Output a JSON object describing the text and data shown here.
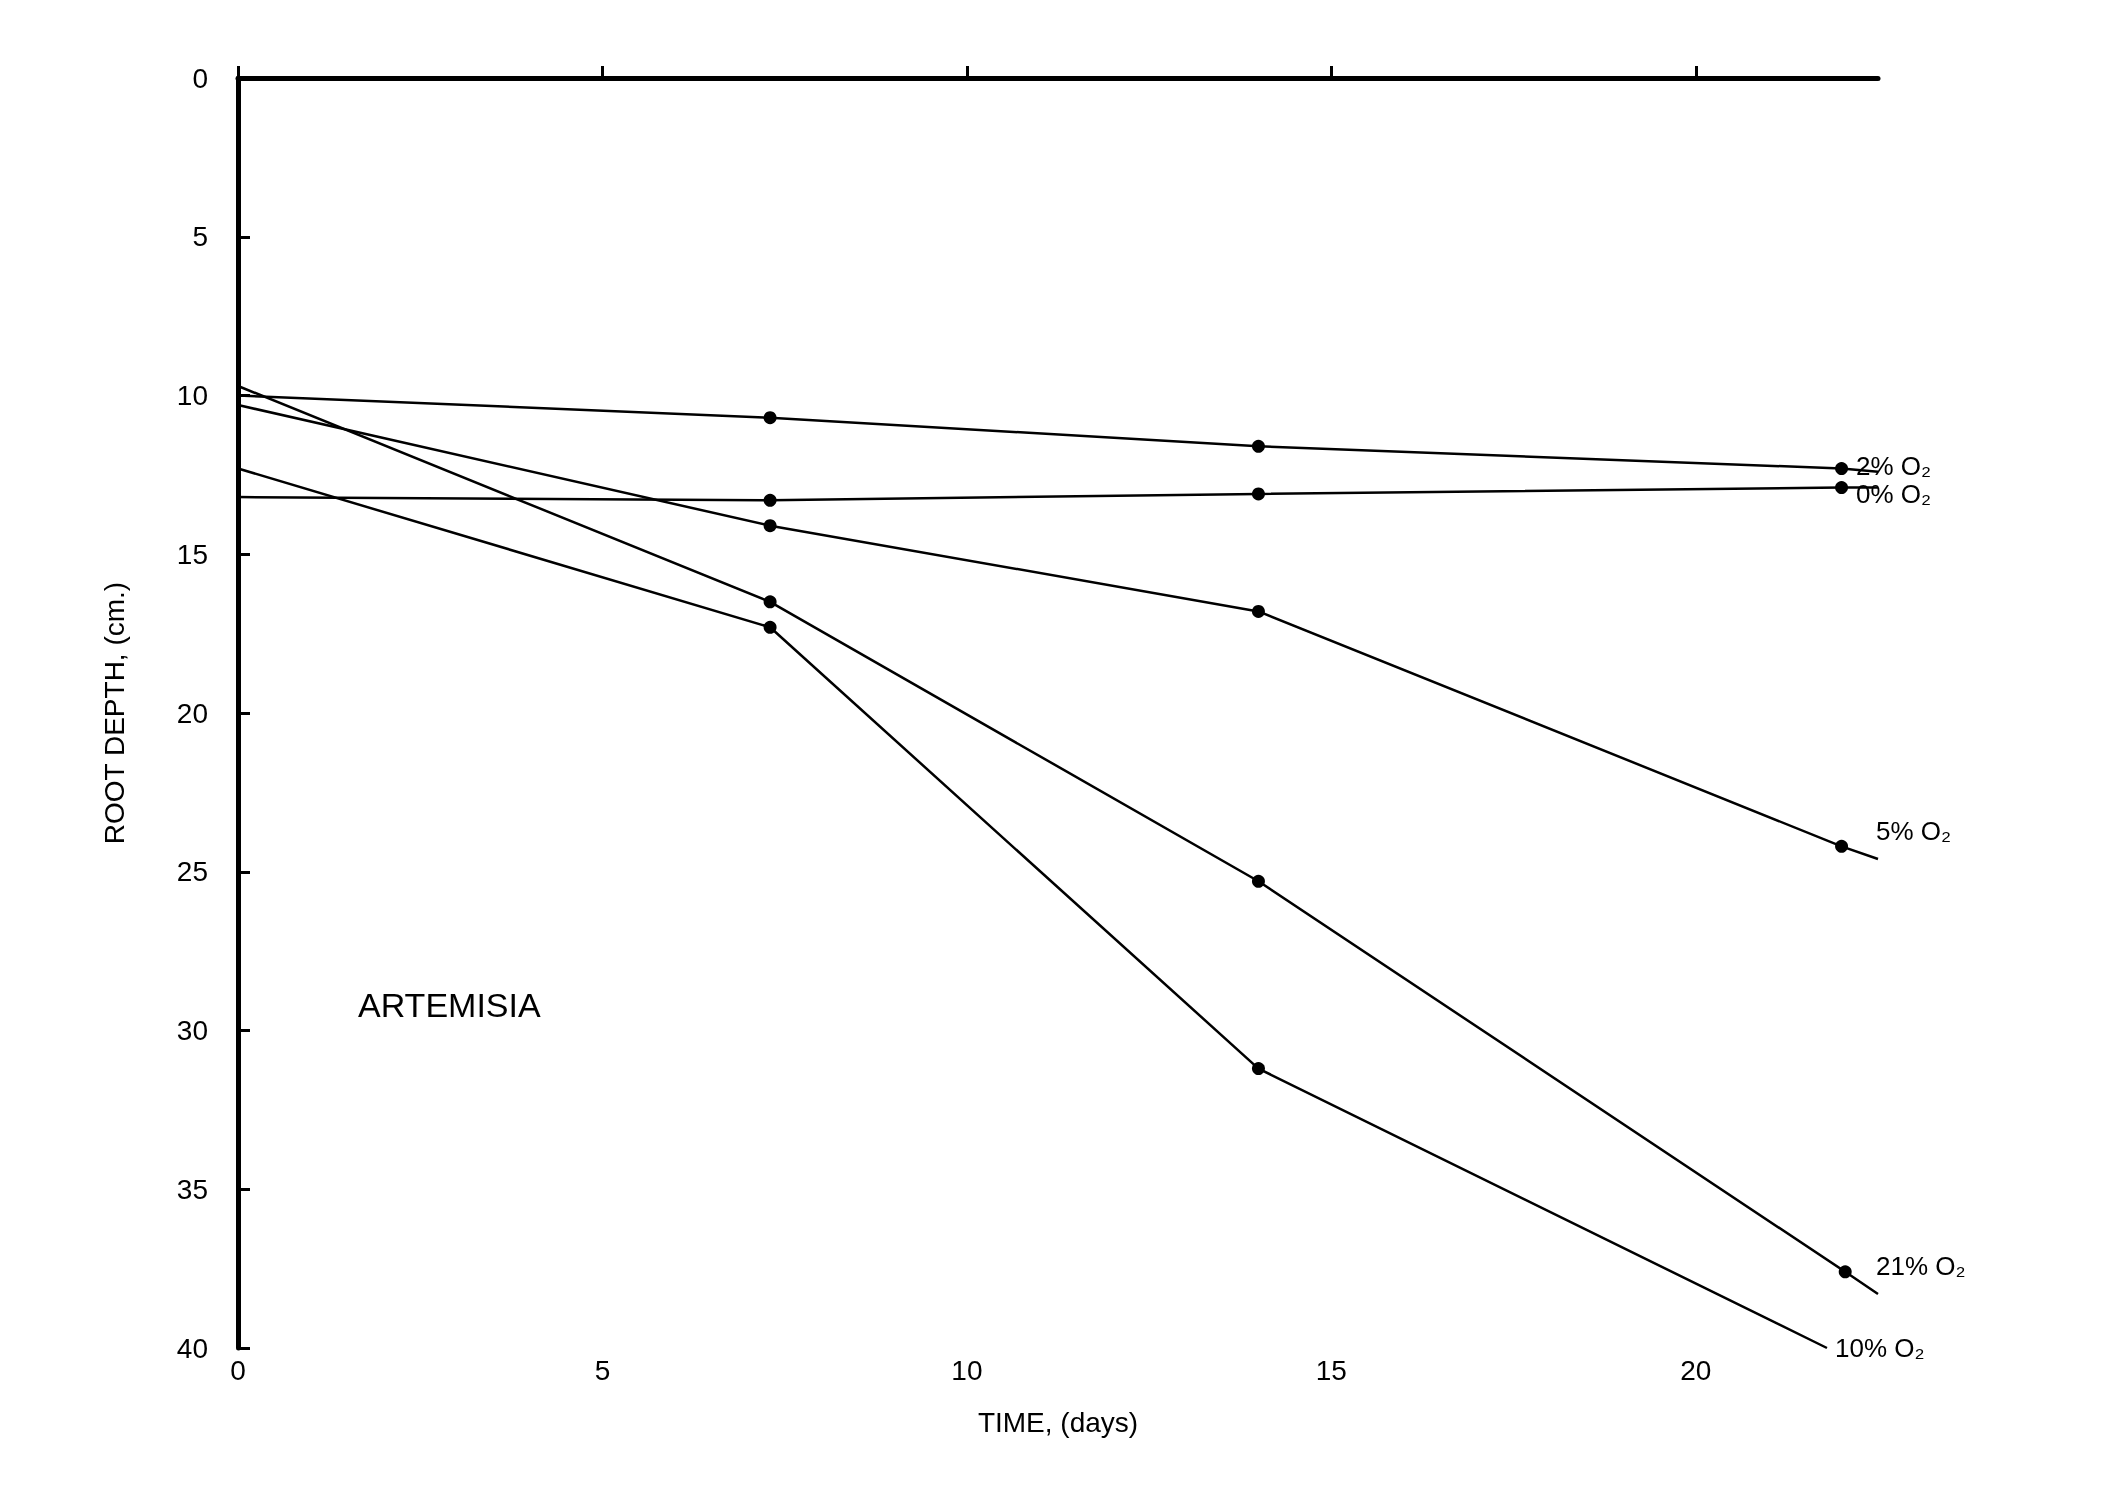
{
  "chart_data": {
    "type": "line",
    "xlabel": "TIME, (days)",
    "ylabel": "ROOT DEPTH, (cm.)",
    "annotations": [
      "ARTEMISIA"
    ],
    "xlim": [
      0,
      22.5
    ],
    "xticks": [
      0,
      5,
      10,
      15,
      20
    ],
    "ylim": [
      40,
      0
    ],
    "yticks": [
      0,
      5,
      10,
      15,
      20,
      25,
      30,
      35,
      40
    ],
    "grid": false,
    "legend": false,
    "marker": "circle",
    "line_style": "solid",
    "series": [
      {
        "name": "2% O₂",
        "color": "#000000",
        "x": [
          0,
          7.3,
          14,
          22,
          22.5
        ],
        "values": [
          10,
          10.7,
          11.6,
          12.3,
          12.4
        ]
      },
      {
        "name": "0% O₂",
        "color": "#000000",
        "x": [
          0,
          7.3,
          14,
          22,
          22.5
        ],
        "values": [
          13.2,
          13.3,
          13.1,
          12.9,
          12.9
        ]
      },
      {
        "name": "5% O₂",
        "color": "#000000",
        "x": [
          0,
          7.3,
          14,
          22,
          22.5
        ],
        "values": [
          10.3,
          14.1,
          16.8,
          24.2,
          24.6
        ]
      },
      {
        "name": "21% O₂",
        "color": "#000000",
        "x": [
          0,
          7.3,
          14,
          22.05,
          22.5
        ],
        "values": [
          9.7,
          16.5,
          25.3,
          37.6,
          38.3
        ]
      },
      {
        "name": "10% O₂",
        "color": "#000000",
        "x": [
          0,
          7.3,
          14,
          21.8
        ],
        "values": [
          12.3,
          17.3,
          31.2,
          40
        ]
      }
    ]
  }
}
